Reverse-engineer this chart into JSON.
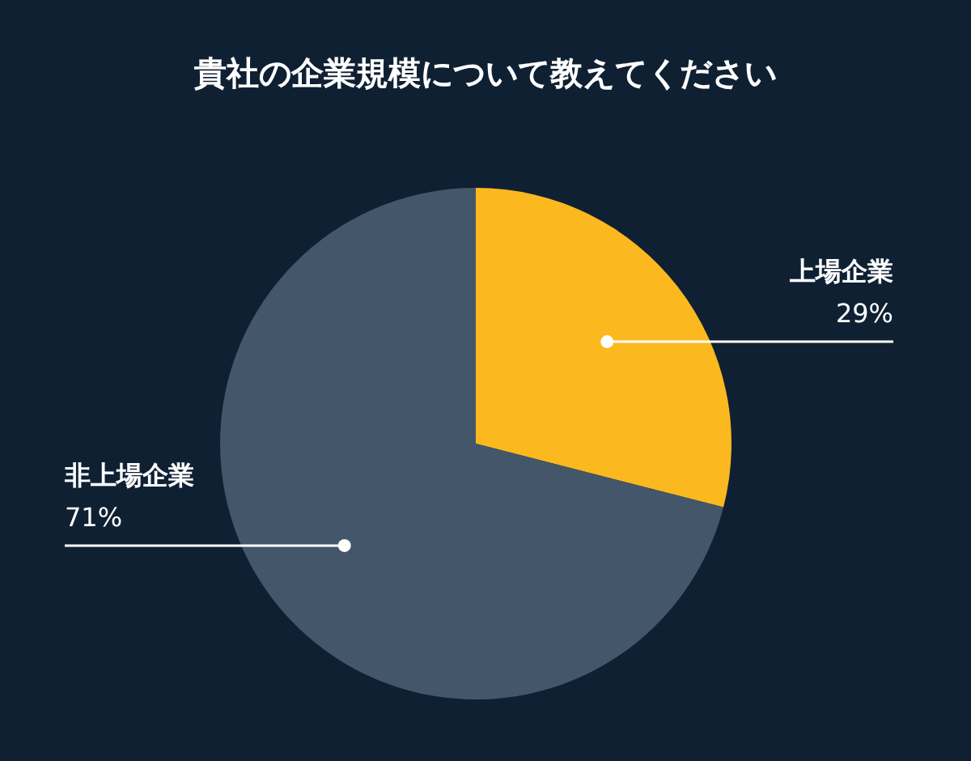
{
  "chart_data": {
    "type": "pie",
    "title": "貴社の企業規模について教えてください",
    "categories": [
      "上場企業",
      "非上場企業"
    ],
    "values": [
      29,
      71
    ],
    "colors": [
      "#fbb81f",
      "#44566a"
    ],
    "value_labels": [
      "29%",
      "71%"
    ]
  }
}
